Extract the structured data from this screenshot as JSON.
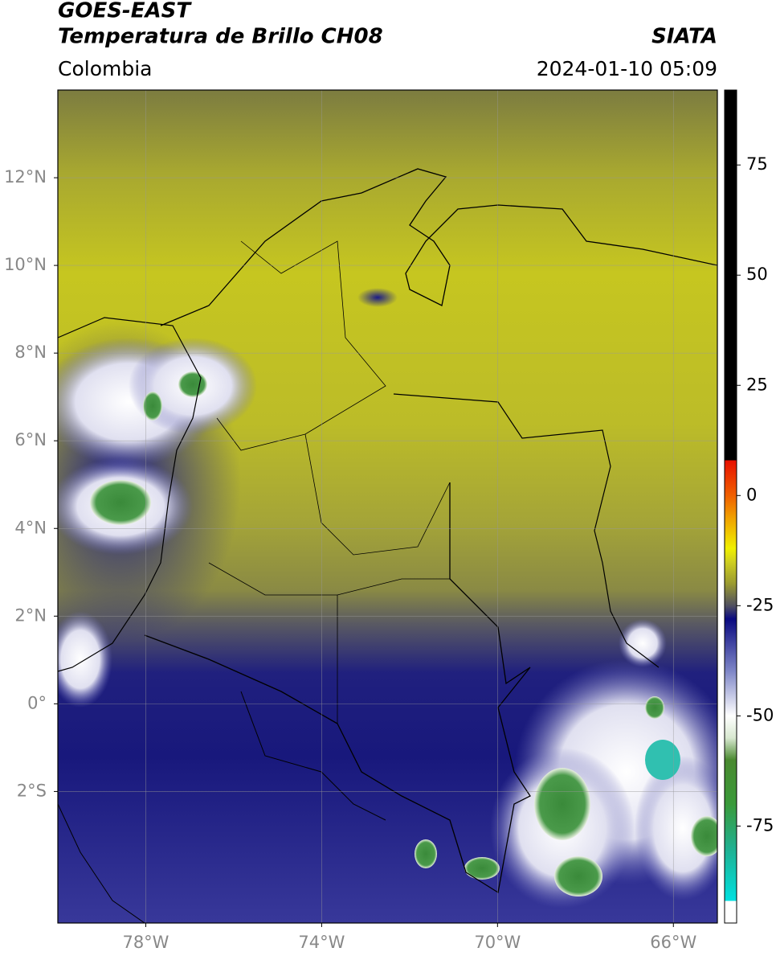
{
  "map": {
    "title": "GOES-EAST",
    "subtitle": "Temperatura de Brillo CH08",
    "source": "SIATA",
    "region": "Colombia",
    "date": "2024-01-10 05:09",
    "lonlim": [
      -80,
      -65
    ],
    "latlim": [
      -5,
      14
    ],
    "lonticks": [
      {
        "value": -78,
        "label": "78°W"
      },
      {
        "value": -74,
        "label": "74°W"
      },
      {
        "value": -70,
        "label": "70°W"
      },
      {
        "value": -66,
        "label": "66°W"
      }
    ],
    "latticks": [
      {
        "value": 12,
        "label": "12°N"
      },
      {
        "value": 10,
        "label": "10°N"
      },
      {
        "value": 8,
        "label": "8°N"
      },
      {
        "value": 6,
        "label": "6°N"
      },
      {
        "value": 4,
        "label": "4°N"
      },
      {
        "value": 2,
        "label": "2°N"
      },
      {
        "value": 0,
        "label": "0°"
      },
      {
        "value": -2,
        "label": "2°S"
      }
    ],
    "grid": true,
    "colorbar": {
      "vlim": [
        -97,
        92
      ],
      "ticks": [
        75,
        50,
        25,
        0,
        -25,
        -50,
        -75
      ],
      "stops": [
        [
          -97,
          "#ffffff"
        ],
        [
          -92,
          "#ffffff"
        ],
        [
          -92,
          "#00e0e0"
        ],
        [
          -80,
          "#20b090"
        ],
        [
          -70,
          "#3a9a3a"
        ],
        [
          -60,
          "#4a8a30"
        ],
        [
          -55,
          "#d8e8d0"
        ],
        [
          -50,
          "#ffffff"
        ],
        [
          -40,
          "#8088c8"
        ],
        [
          -28,
          "#0a0a80"
        ],
        [
          -25,
          "#505060"
        ],
        [
          -20,
          "#9a9a30"
        ],
        [
          -15,
          "#d0d020"
        ],
        [
          -12,
          "#f0f000"
        ],
        [
          -5,
          "#f0a000"
        ],
        [
          0,
          "#f06000"
        ],
        [
          8,
          "#e81000"
        ],
        [
          8,
          "#000000"
        ],
        [
          92,
          "#000000"
        ]
      ]
    }
  }
}
